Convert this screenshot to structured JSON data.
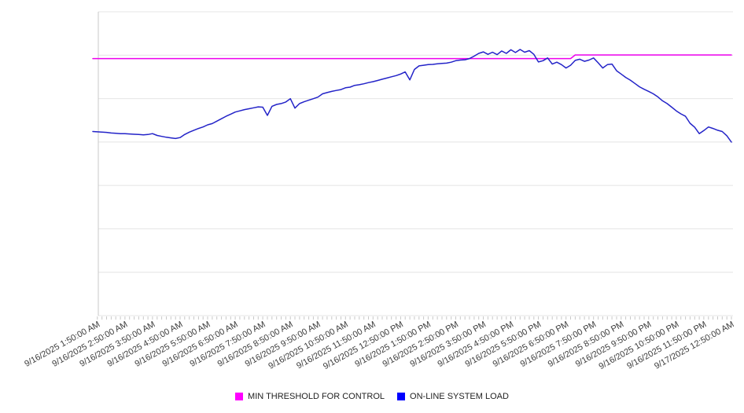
{
  "chart_data": {
    "type": "line",
    "title": "",
    "x_axis": {
      "labels": [
        "9/16/2025 1:50:00 AM",
        "9/16/2025 2:50:00 AM",
        "9/16/2025 3:50:00 AM",
        "9/16/2025 4:50:00 AM",
        "9/16/2025 5:50:00 AM",
        "9/16/2025 6:50:00 AM",
        "9/16/2025 7:50:00 AM",
        "9/16/2025 8:50:00 AM",
        "9/16/2025 9:50:00 AM",
        "9/16/2025 10:50:00 AM",
        "9/16/2025 11:50:00 AM",
        "9/16/2025 12:50:00 PM",
        "9/16/2025 1:50:00 PM",
        "9/16/2025 2:50:00 PM",
        "9/16/2025 3:50:00 PM",
        "9/16/2025 4:50:00 PM",
        "9/16/2025 5:50:00 PM",
        "9/16/2025 6:50:00 PM",
        "9/16/2025 7:50:00 PM",
        "9/16/2025 8:50:00 PM",
        "9/16/2025 9:50:00 PM",
        "9/16/2025 10:50:00 PM",
        "9/16/2025 11:50:00 PM",
        "9/17/2025 12:50:00 AM"
      ],
      "minor_ticks_per_label": 6,
      "first_label_point_index": 1,
      "label_rotation_deg": -29
    },
    "y_axis": {
      "tick_labels_visible": false,
      "min": 0,
      "max": 100,
      "gridline_count": 8,
      "grid": true
    },
    "legend_position": "bottom-center",
    "series": [
      {
        "name": "MIN THRESHOLD FOR CONTROL",
        "color": "#ee00ee",
        "swatch_color": "#ff00ff",
        "values": [
          84.6,
          84.6,
          84.6,
          84.6,
          84.6,
          84.6,
          84.6,
          84.6,
          84.6,
          84.6,
          84.6,
          84.6,
          84.6,
          84.6,
          84.6,
          84.6,
          84.6,
          84.6,
          84.6,
          84.6,
          84.6,
          84.6,
          84.6,
          84.6,
          84.6,
          84.6,
          84.6,
          84.6,
          84.6,
          84.6,
          84.6,
          84.6,
          84.6,
          84.6,
          84.6,
          84.6,
          84.6,
          84.6,
          84.6,
          84.6,
          84.6,
          84.6,
          84.6,
          84.6,
          84.6,
          84.6,
          84.6,
          84.6,
          84.6,
          84.6,
          84.6,
          84.6,
          84.6,
          84.6,
          84.6,
          84.6,
          84.6,
          84.6,
          84.6,
          84.6,
          84.6,
          84.6,
          84.6,
          84.6,
          84.6,
          84.6,
          84.6,
          84.6,
          84.6,
          84.6,
          84.6,
          84.6,
          84.6,
          84.6,
          84.6,
          84.6,
          84.6,
          84.6,
          84.6,
          84.6,
          84.6,
          84.6,
          84.6,
          84.6,
          84.6,
          84.6,
          84.6,
          84.6,
          84.6,
          84.6,
          84.6,
          84.6,
          84.6,
          84.6,
          84.6,
          84.6,
          84.6,
          84.6,
          84.6,
          84.6,
          84.6,
          84.6,
          84.6,
          84.6,
          84.6,
          85.8,
          85.8,
          85.8,
          85.8,
          85.8,
          85.8,
          85.8,
          85.8,
          85.8,
          85.8,
          85.8,
          85.8,
          85.8,
          85.8,
          85.8,
          85.8,
          85.8,
          85.8,
          85.8,
          85.8,
          85.8,
          85.8,
          85.8,
          85.8,
          85.8,
          85.8,
          85.8,
          85.8,
          85.8,
          85.8,
          85.8,
          85.8,
          85.8,
          85.8,
          85.8
        ]
      },
      {
        "name": "ON-LINE SYSTEM LOAD",
        "color": "#2323c8",
        "swatch_color": "#0000ff",
        "values": [
          60.6,
          60.5,
          60.4,
          60.3,
          60.1,
          60.0,
          59.9,
          59.9,
          59.8,
          59.7,
          59.6,
          59.5,
          59.6,
          59.9,
          59.3,
          59.0,
          58.7,
          58.5,
          58.3,
          58.6,
          59.6,
          60.4,
          61.0,
          61.6,
          62.1,
          62.8,
          63.2,
          64.0,
          64.8,
          65.6,
          66.3,
          67.0,
          67.4,
          67.8,
          68.1,
          68.4,
          68.7,
          68.6,
          65.9,
          68.9,
          69.5,
          69.8,
          70.3,
          71.4,
          68.3,
          69.8,
          70.4,
          70.9,
          71.4,
          71.9,
          73.0,
          73.4,
          73.8,
          74.1,
          74.4,
          75.0,
          75.2,
          75.8,
          76.0,
          76.3,
          76.7,
          77.0,
          77.4,
          77.8,
          78.2,
          78.6,
          79.0,
          79.5,
          80.2,
          77.6,
          81.0,
          82.2,
          82.4,
          82.6,
          82.7,
          82.9,
          83.0,
          83.1,
          83.4,
          83.9,
          84.1,
          84.2,
          84.6,
          85.4,
          86.3,
          86.8,
          86.0,
          86.7,
          85.9,
          87.1,
          86.3,
          87.5,
          86.6,
          87.6,
          86.7,
          87.2,
          86.0,
          83.5,
          83.9,
          84.8,
          82.8,
          83.4,
          82.6,
          81.5,
          82.4,
          84.0,
          84.4,
          83.7,
          84.1,
          84.8,
          83.2,
          81.5,
          82.6,
          82.8,
          80.6,
          79.5,
          78.4,
          77.5,
          76.4,
          75.3,
          74.5,
          73.8,
          73.0,
          72.0,
          70.7,
          69.8,
          68.6,
          67.4,
          66.4,
          65.6,
          63.3,
          62.0,
          59.9,
          60.9,
          62.1,
          61.6,
          61.0,
          60.6,
          59.2,
          57.1
        ]
      }
    ],
    "colors": {
      "gridline": "#e4e4e4",
      "axis": "#c8c8c8",
      "tick": "#c8c8c8",
      "tick_label": "#3c3c3c",
      "legend_text": "#222222",
      "background": "#ffffff"
    }
  },
  "legend": {
    "items": [
      {
        "label": "MIN THRESHOLD FOR CONTROL"
      },
      {
        "label": "ON-LINE SYSTEM LOAD"
      }
    ]
  }
}
